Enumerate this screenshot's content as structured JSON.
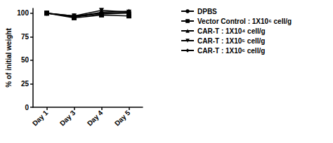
{
  "chart_data": {
    "type": "line",
    "y_label": "% of initial weight",
    "categories": [
      "Day 1",
      "Day 3",
      "Day 4",
      "Day 5"
    ],
    "ylim": [
      0,
      105
    ],
    "yticks": [
      0,
      25,
      50,
      75,
      100
    ],
    "legend": "right",
    "series": [
      {
        "name": "DPBS",
        "color": "#000000",
        "marker": "circle",
        "values": [
          100,
          97,
          100,
          101
        ]
      },
      {
        "name": "Vector Control : 1X10⁶ cell/g",
        "color": "#000000",
        "marker": "square",
        "values": [
          100,
          95,
          98,
          97
        ]
      },
      {
        "name": "CAR-T : 1X10⁴ cell/g",
        "color": "#000000",
        "marker": "triangle",
        "values": [
          100,
          96,
          101,
          102
        ]
      },
      {
        "name": "CAR-T : 1X10⁵ cell/g",
        "color": "#000000",
        "marker": "triangle_down",
        "values": [
          100,
          97,
          103,
          101
        ]
      },
      {
        "name": "CAR-T : 1X10⁶ cell/g",
        "color": "#000000",
        "marker": "diamond",
        "values": [
          100,
          96,
          99,
          100
        ]
      }
    ]
  }
}
